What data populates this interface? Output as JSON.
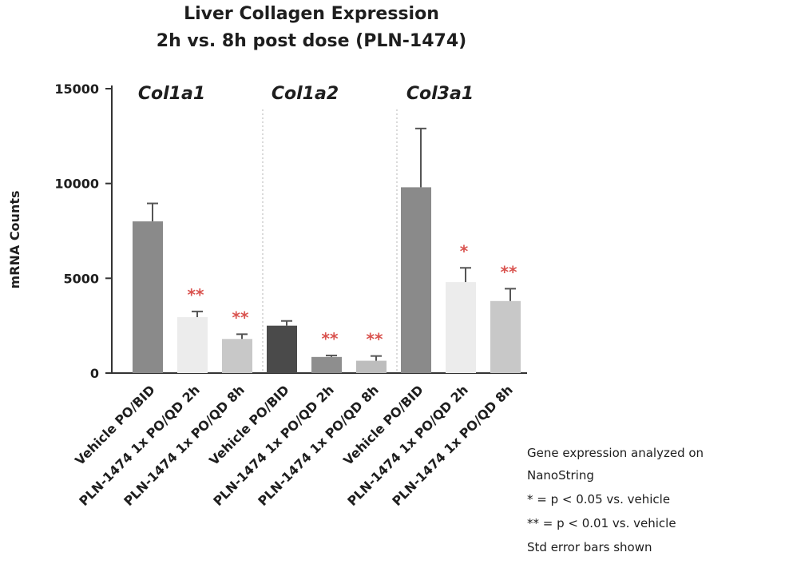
{
  "chart_data": {
    "type": "bar",
    "title_lines": [
      "Liver Collagen Expression",
      "2h vs. 8h post dose (PLN-1474)"
    ],
    "ylabel": "mRNA Counts",
    "ylim": [
      0,
      15000
    ],
    "yticks": [
      0,
      5000,
      10000,
      15000
    ],
    "yticks_labels": [
      "0",
      "5000",
      "10000",
      "15000"
    ],
    "groups": [
      {
        "name": "Col1a1",
        "bars": [
          {
            "label": "Vehicle PO/BID",
            "value": 8000,
            "error": 950,
            "color": "#8a8a8a",
            "sig": ""
          },
          {
            "label": "PLN-1474 1x PO/QD 2h",
            "value": 2950,
            "error": 300,
            "color": "#ececec",
            "sig": "**"
          },
          {
            "label": "PLN-1474 1x PO/QD 8h",
            "value": 1800,
            "error": 250,
            "color": "#c8c8c8",
            "sig": "**"
          }
        ]
      },
      {
        "name": "Col1a2",
        "bars": [
          {
            "label": "Vehicle PO/BID",
            "value": 2500,
            "error": 250,
            "color": "#4a4a4a",
            "sig": ""
          },
          {
            "label": "PLN-1474 1x PO/QD 2h",
            "value": 850,
            "error": 80,
            "color": "#8e8e8e",
            "sig": "**"
          },
          {
            "label": "PLN-1474 1x PO/QD 8h",
            "value": 650,
            "error": 250,
            "color": "#bdbdbd",
            "sig": "**"
          }
        ]
      },
      {
        "name": "Col3a1",
        "bars": [
          {
            "label": "Vehicle PO/BID",
            "value": 9800,
            "error": 3100,
            "color": "#8a8a8a",
            "sig": ""
          },
          {
            "label": "PLN-1474 1x PO/QD 2h",
            "value": 4800,
            "error": 750,
            "color": "#ececec",
            "sig": "*"
          },
          {
            "label": "PLN-1474 1x PO/QD 8h",
            "value": 3800,
            "error": 650,
            "color": "#c8c8c8",
            "sig": "**"
          }
        ]
      }
    ],
    "sig_color": "#d9534f"
  },
  "notes": {
    "line1": "Gene expression analyzed on",
    "line2": "NanoString",
    "line3": "* = p < 0.05 vs. vehicle",
    "line4": "** = p < 0.01 vs. vehicle",
    "line5": "Std error bars shown"
  }
}
